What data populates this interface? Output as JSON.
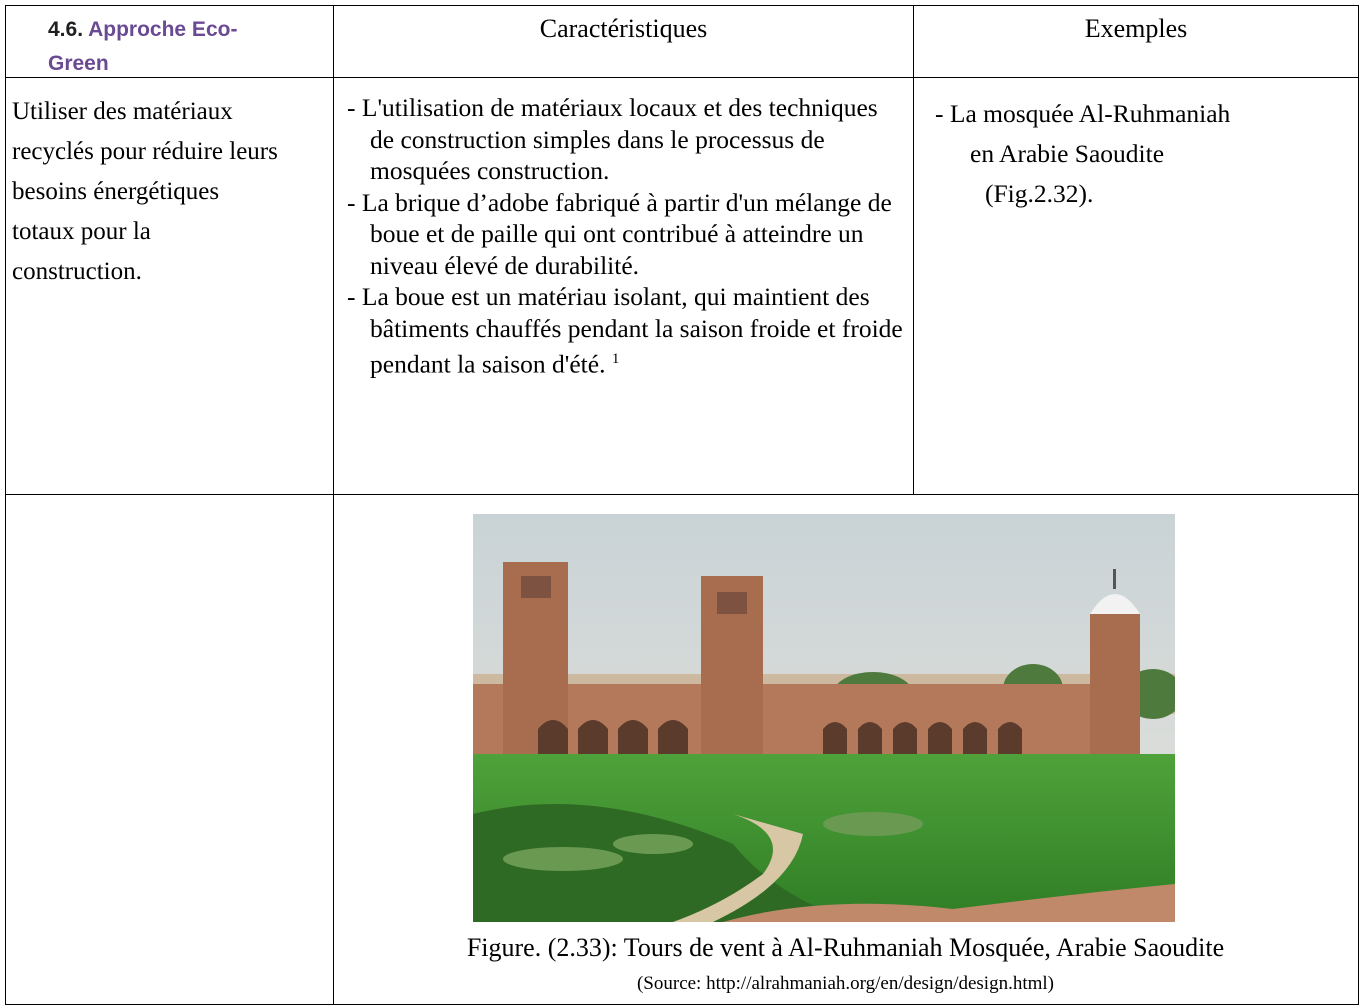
{
  "table": {
    "header": {
      "col1": {
        "number": "4.6.",
        "title": "Approche Eco-Green"
      },
      "col2": "Caractéristiques",
      "col3": "Exemples"
    },
    "row": {
      "col1": "Utiliser des matériaux recyclés pour réduire leurs besoins énergétiques totaux pour la construction.",
      "col2": [
        "- L'utilisation de matériaux locaux et des techniques de construction simples dans le processus de mosquées construction.",
        "- La brique d’adobe fabriqué à partir d'un mélange de boue et de paille qui ont contribué à atteindre un niveau élevé de durabilité.",
        "- La boue est un  matériau isolant, qui maintient des bâtiments chauffés pendant la saison froide et froide pendant la saison d'été."
      ],
      "footnote_ref": "1",
      "col3": [
        "- La mosquée Al-Ruhmaniah",
        "en Arabie Saoudite",
        "(Fig.2.32)."
      ]
    },
    "figure": {
      "caption": "Figure. (2.33): Tours de vent à Al-Ruhmaniah Mosquée, Arabie Saoudite",
      "source": "(Source: http://alrahmaniah.org/en/design/design.html)"
    }
  }
}
